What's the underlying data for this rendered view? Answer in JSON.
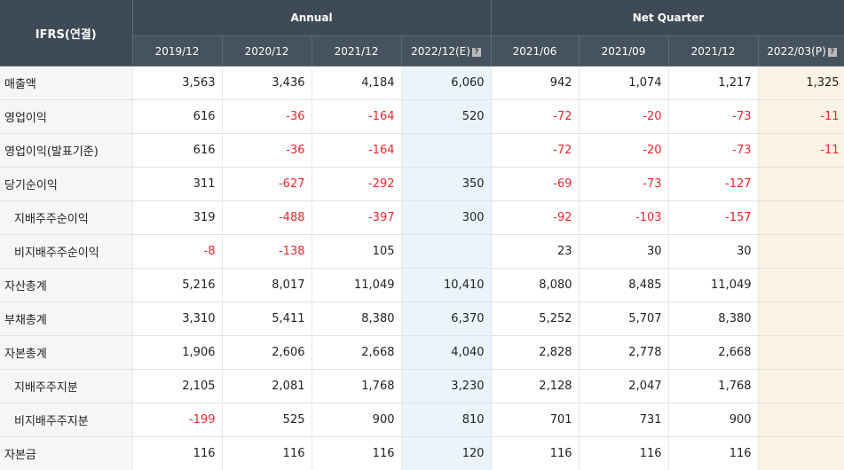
{
  "header": {
    "corner_label": "IFRS(연결)",
    "annual_label": "Annual",
    "quarter_label": "Net Quarter",
    "annual_periods": [
      "2019/12",
      "2020/12",
      "2021/12",
      "2022/12(E)"
    ],
    "quarter_periods": [
      "2021/06",
      "2021/09",
      "2021/12",
      "2022/03(P)"
    ],
    "help_icon_glyph": "?"
  },
  "colors": {
    "header_bg": "#3e4a55",
    "estimate_bg": "#e9f4fb",
    "provisional_bg": "#fdf3e4",
    "negative_text": "#e8282f"
  },
  "rows": [
    {
      "label": "매출액",
      "indent": false,
      "values": [
        "3,563",
        "3,436",
        "4,184",
        "6,060",
        "942",
        "1,074",
        "1,217",
        "1,325"
      ]
    },
    {
      "label": "영업이익",
      "indent": false,
      "values": [
        "616",
        "-36",
        "-164",
        "520",
        "-72",
        "-20",
        "-73",
        "-11"
      ]
    },
    {
      "label": "영업이익(발표기준)",
      "indent": false,
      "values": [
        "616",
        "-36",
        "-164",
        "",
        "-72",
        "-20",
        "-73",
        "-11"
      ]
    },
    {
      "label": "당기순이익",
      "indent": false,
      "values": [
        "311",
        "-627",
        "-292",
        "350",
        "-69",
        "-73",
        "-127",
        ""
      ]
    },
    {
      "label": "지배주주순이익",
      "indent": true,
      "values": [
        "319",
        "-488",
        "-397",
        "300",
        "-92",
        "-103",
        "-157",
        ""
      ]
    },
    {
      "label": "비지배주주순이익",
      "indent": true,
      "values": [
        "-8",
        "-138",
        "105",
        "",
        "23",
        "30",
        "30",
        ""
      ]
    },
    {
      "label": "자산총계",
      "indent": false,
      "values": [
        "5,216",
        "8,017",
        "11,049",
        "10,410",
        "8,080",
        "8,485",
        "11,049",
        ""
      ]
    },
    {
      "label": "부채총계",
      "indent": false,
      "values": [
        "3,310",
        "5,411",
        "8,380",
        "6,370",
        "5,252",
        "5,707",
        "8,380",
        ""
      ]
    },
    {
      "label": "자본총계",
      "indent": false,
      "values": [
        "1,906",
        "2,606",
        "2,668",
        "4,040",
        "2,828",
        "2,778",
        "2,668",
        ""
      ]
    },
    {
      "label": "지배주주지분",
      "indent": true,
      "values": [
        "2,105",
        "2,081",
        "1,768",
        "3,230",
        "2,128",
        "2,047",
        "1,768",
        ""
      ]
    },
    {
      "label": "비지배주주지분",
      "indent": true,
      "values": [
        "-199",
        "525",
        "900",
        "810",
        "701",
        "731",
        "900",
        ""
      ]
    },
    {
      "label": "자본금",
      "indent": false,
      "values": [
        "116",
        "116",
        "116",
        "120",
        "116",
        "116",
        "116",
        ""
      ]
    }
  ]
}
